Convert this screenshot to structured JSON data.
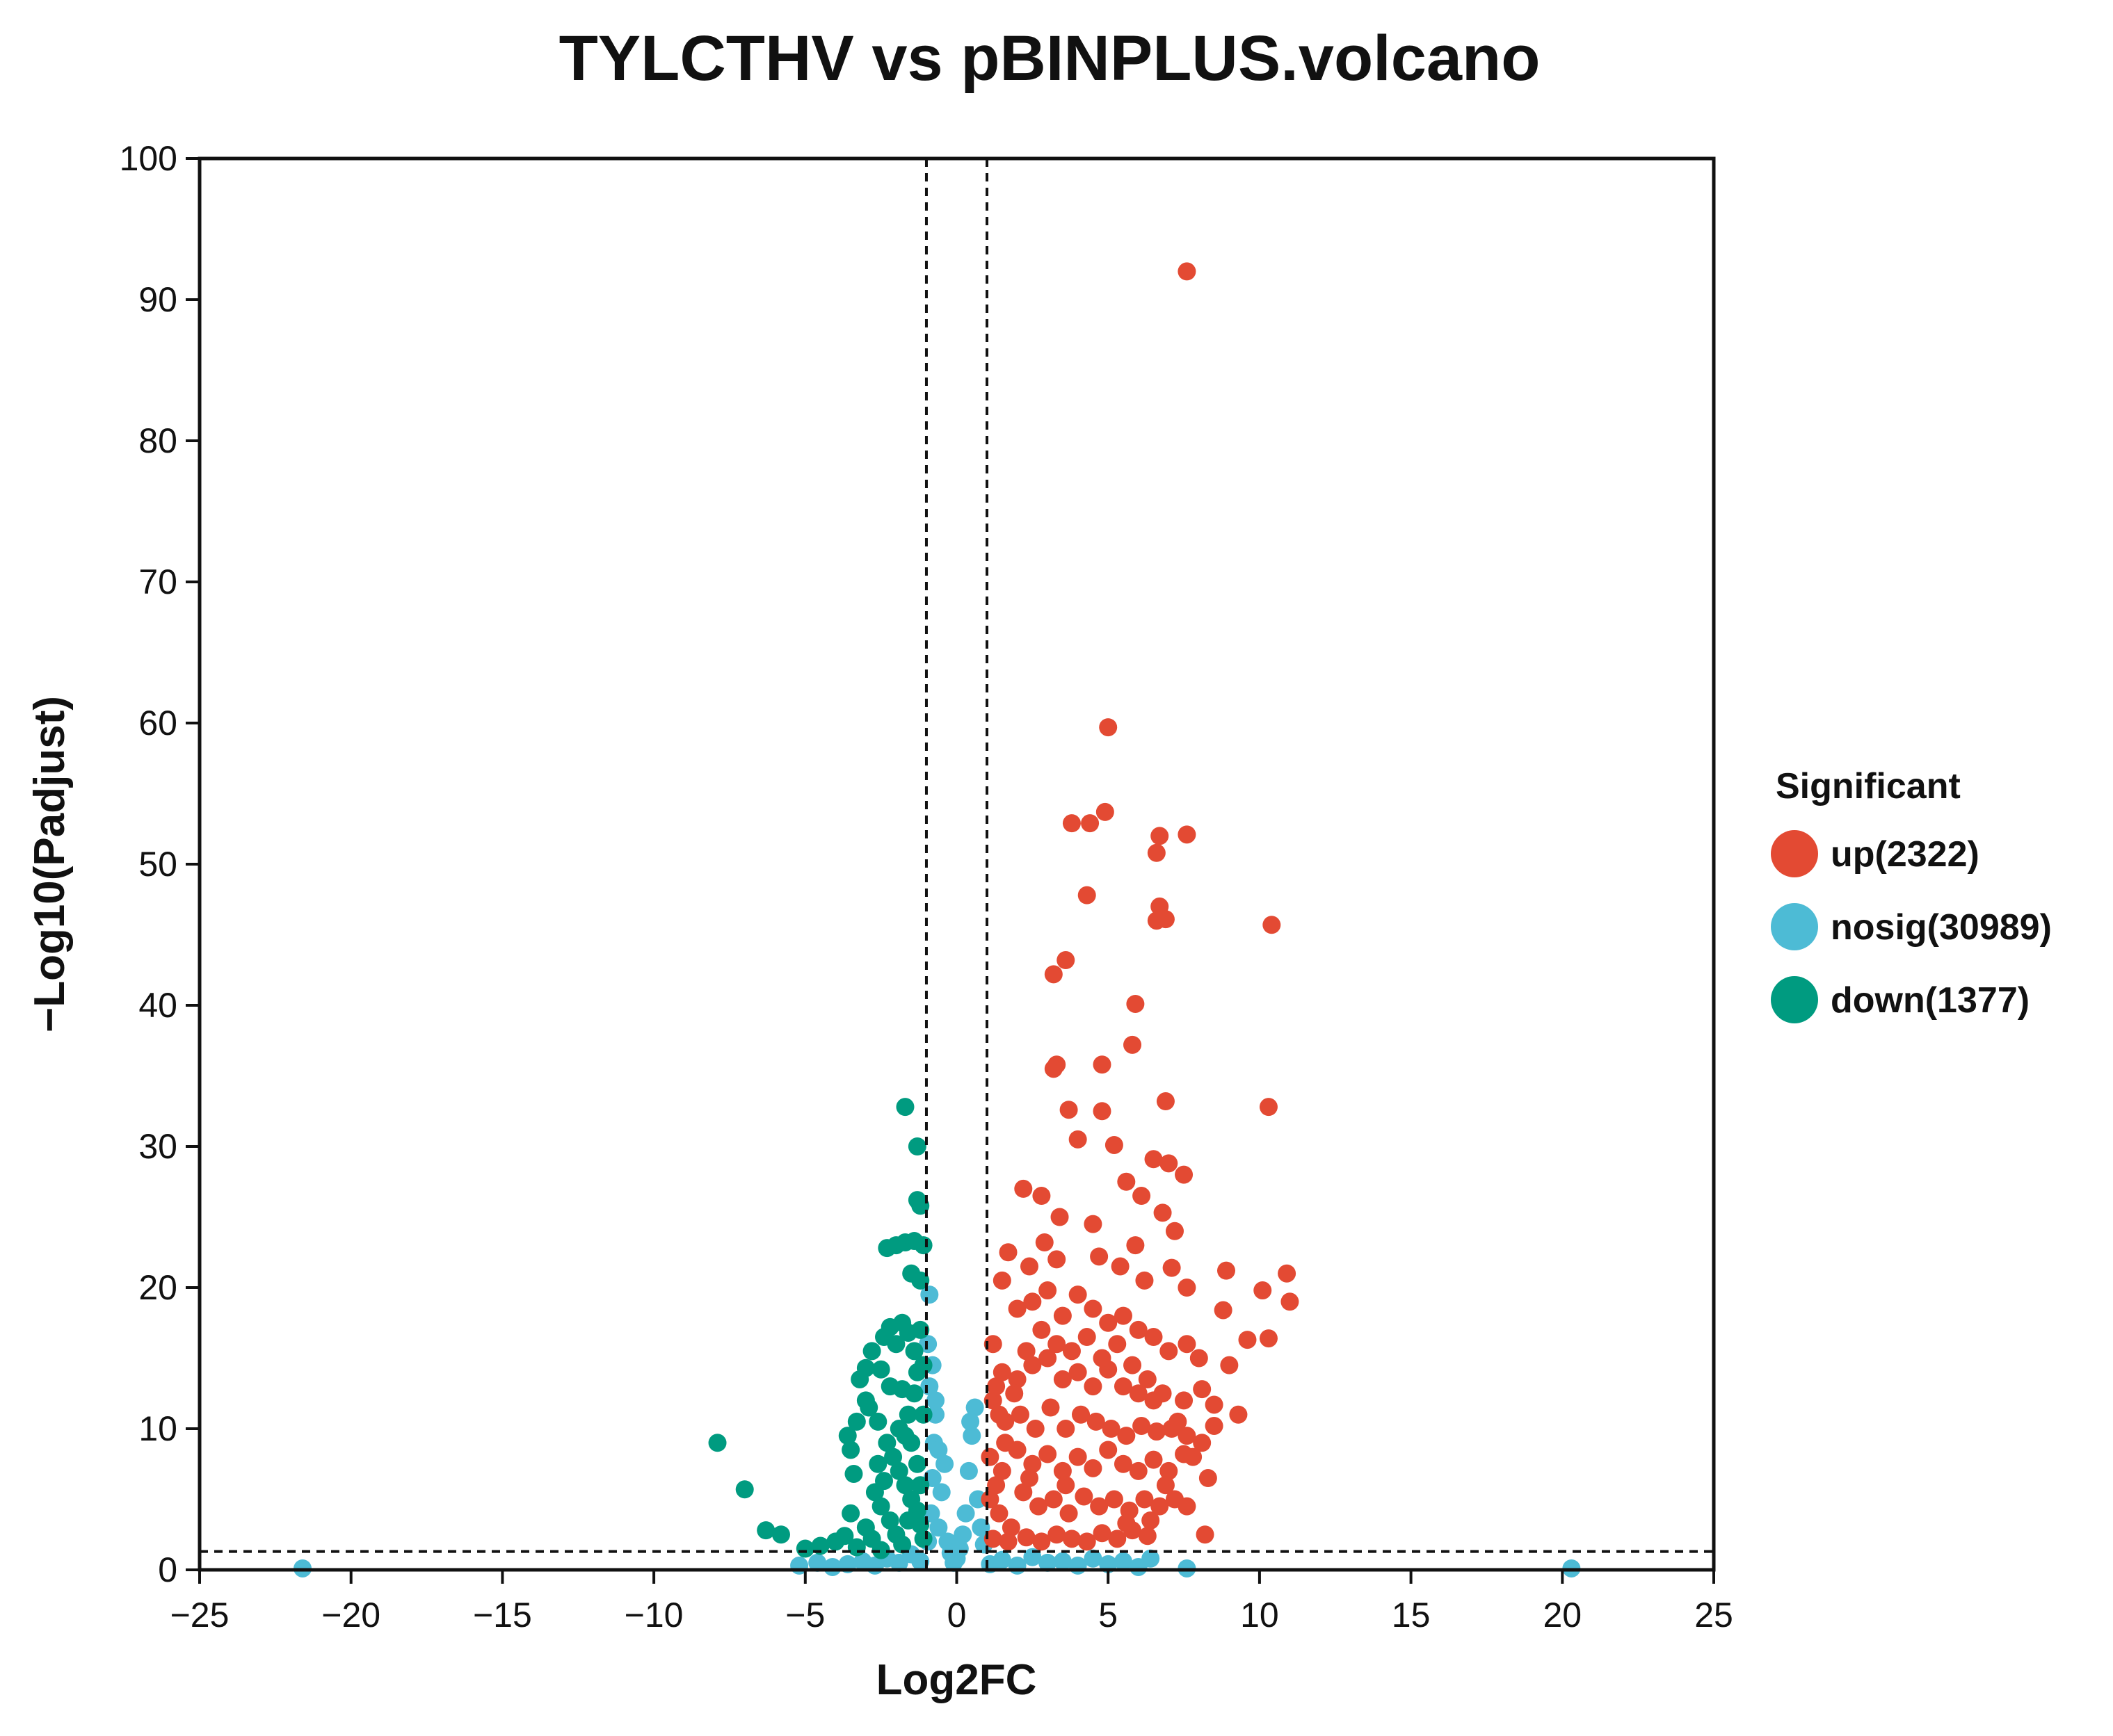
{
  "chart_data": {
    "type": "scatter",
    "title": "TYLCTHV vs pBINPLUS.volcano",
    "xlabel": "Log2FC",
    "ylabel": "−Log10(Padjust)",
    "xlim": [
      -25,
      25
    ],
    "ylim": [
      0,
      100
    ],
    "xticks": [
      -25,
      -20,
      -15,
      -10,
      -5,
      0,
      5,
      10,
      15,
      20,
      25
    ],
    "yticks": [
      0,
      10,
      20,
      30,
      40,
      50,
      60,
      70,
      80,
      90,
      100
    ],
    "grid": false,
    "thresholds": {
      "log2fc": [
        -1,
        1
      ],
      "neg_log10_padjust": 1.3
    },
    "legend": {
      "title": "Significant",
      "position": "right",
      "entries": [
        {
          "key": "up",
          "label": "up(2322)",
          "color": "#E34A33"
        },
        {
          "key": "nosig",
          "label": "nosig(30989)",
          "color": "#4DBBD5"
        },
        {
          "key": "down",
          "label": "down(1377)",
          "color": "#009B80"
        }
      ]
    },
    "series": [
      {
        "name": "nosig",
        "color": "#4DBBD5",
        "points": [
          [
            -21.6,
            0.1
          ],
          [
            20.3,
            0.1
          ],
          [
            7.6,
            0.1
          ],
          [
            6.4,
            0.8
          ],
          [
            -5.2,
            0.3
          ],
          [
            -4.6,
            0.5
          ],
          [
            -4.1,
            0.2
          ],
          [
            -3.6,
            0.4
          ],
          [
            -3.1,
            0.6
          ],
          [
            -2.7,
            0.3
          ],
          [
            -2.3,
            0.8
          ],
          [
            -1.9,
            0.5
          ],
          [
            -1.5,
            1.1
          ],
          [
            -1.2,
            0.6
          ],
          [
            -0.95,
            2.0
          ],
          [
            -0.85,
            4.0
          ],
          [
            -0.8,
            6.5
          ],
          [
            -0.75,
            9.0
          ],
          [
            -0.7,
            11.0
          ],
          [
            -0.9,
            13.0
          ],
          [
            -0.95,
            16.0
          ],
          [
            -0.9,
            19.5
          ],
          [
            -0.6,
            3.0
          ],
          [
            -0.5,
            5.5
          ],
          [
            -0.4,
            7.5
          ],
          [
            -0.3,
            2.0
          ],
          [
            -0.2,
            1.2
          ],
          [
            -0.1,
            0.5
          ],
          [
            0.0,
            0.8
          ],
          [
            0.1,
            1.5
          ],
          [
            0.2,
            2.5
          ],
          [
            0.3,
            4.0
          ],
          [
            0.4,
            7.0
          ],
          [
            0.5,
            9.5
          ],
          [
            0.6,
            11.5
          ],
          [
            0.7,
            5.0
          ],
          [
            0.8,
            3.0
          ],
          [
            0.9,
            1.8
          ],
          [
            1.1,
            0.4
          ],
          [
            1.5,
            0.7
          ],
          [
            2.0,
            0.3
          ],
          [
            2.5,
            0.9
          ],
          [
            3.0,
            0.5
          ],
          [
            3.5,
            0.6
          ],
          [
            4.0,
            0.3
          ],
          [
            4.5,
            0.8
          ],
          [
            5.0,
            0.4
          ],
          [
            5.5,
            0.6
          ],
          [
            6.0,
            0.2
          ],
          [
            -0.8,
            14.5
          ],
          [
            -0.7,
            12.0
          ],
          [
            -0.6,
            8.5
          ],
          [
            0.45,
            10.5
          ]
        ]
      },
      {
        "name": "down",
        "color": "#009B80",
        "points": [
          [
            -1.7,
            32.8
          ],
          [
            -1.3,
            30.0
          ],
          [
            -1.3,
            26.2
          ],
          [
            -1.2,
            25.8
          ],
          [
            -1.7,
            23.2
          ],
          [
            -1.4,
            23.3
          ],
          [
            -2.0,
            23.0
          ],
          [
            -2.3,
            22.8
          ],
          [
            -1.1,
            23.0
          ],
          [
            -1.5,
            21.0
          ],
          [
            -1.2,
            20.5
          ],
          [
            -7.9,
            9.0
          ],
          [
            -7.0,
            5.7
          ],
          [
            -6.3,
            2.8
          ],
          [
            -5.8,
            2.5
          ],
          [
            -5.0,
            1.5
          ],
          [
            -4.5,
            1.7
          ],
          [
            -4.0,
            2.0
          ],
          [
            -3.7,
            2.4
          ],
          [
            -3.5,
            4.0
          ],
          [
            -3.4,
            6.8
          ],
          [
            -3.5,
            8.5
          ],
          [
            -3.6,
            9.5
          ],
          [
            -3.3,
            10.5
          ],
          [
            -3.0,
            12.0
          ],
          [
            -3.2,
            13.5
          ],
          [
            -3.0,
            14.3
          ],
          [
            -2.5,
            14.2
          ],
          [
            -2.8,
            15.5
          ],
          [
            -2.4,
            16.5
          ],
          [
            -2.2,
            17.2
          ],
          [
            -2.0,
            16.0
          ],
          [
            -1.8,
            17.5
          ],
          [
            -1.6,
            16.8
          ],
          [
            -1.4,
            15.5
          ],
          [
            -1.2,
            17.0
          ],
          [
            -2.9,
            11.5
          ],
          [
            -2.6,
            10.5
          ],
          [
            -2.3,
            9.0
          ],
          [
            -2.1,
            8.0
          ],
          [
            -1.9,
            7.0
          ],
          [
            -1.7,
            6.0
          ],
          [
            -1.5,
            5.0
          ],
          [
            -1.3,
            4.2
          ],
          [
            -1.2,
            3.2
          ],
          [
            -1.1,
            2.2
          ],
          [
            -2.7,
            5.5
          ],
          [
            -2.5,
            4.5
          ],
          [
            -2.2,
            3.5
          ],
          [
            -2.0,
            2.5
          ],
          [
            -1.8,
            1.8
          ],
          [
            -3.0,
            3.0
          ],
          [
            -2.8,
            2.2
          ],
          [
            -1.4,
            12.5
          ],
          [
            -1.6,
            11.0
          ],
          [
            -1.8,
            12.8
          ],
          [
            -2.2,
            13.0
          ],
          [
            -1.5,
            9.0
          ],
          [
            -1.3,
            7.5
          ],
          [
            -1.1,
            11.0
          ],
          [
            -1.1,
            14.5
          ],
          [
            -1.3,
            14.0
          ],
          [
            -2.6,
            7.5
          ],
          [
            -1.7,
            9.5
          ],
          [
            -1.9,
            10.0
          ],
          [
            -2.4,
            6.3
          ],
          [
            -3.3,
            1.6
          ],
          [
            -2.5,
            1.4
          ],
          [
            -1.6,
            3.5
          ],
          [
            -1.2,
            6.0
          ]
        ]
      },
      {
        "name": "up",
        "color": "#E34A33",
        "points": [
          [
            7.6,
            92.0
          ],
          [
            5.0,
            59.7
          ],
          [
            4.9,
            53.7
          ],
          [
            3.8,
            52.9
          ],
          [
            4.4,
            52.9
          ],
          [
            6.7,
            52.0
          ],
          [
            7.6,
            52.1
          ],
          [
            6.6,
            50.8
          ],
          [
            4.3,
            47.8
          ],
          [
            6.7,
            47.0
          ],
          [
            6.6,
            46.0
          ],
          [
            6.9,
            46.1
          ],
          [
            10.4,
            45.7
          ],
          [
            3.6,
            43.2
          ],
          [
            3.2,
            42.2
          ],
          [
            5.9,
            40.1
          ],
          [
            5.8,
            37.2
          ],
          [
            3.3,
            35.8
          ],
          [
            3.2,
            35.5
          ],
          [
            4.8,
            35.8
          ],
          [
            6.9,
            33.2
          ],
          [
            10.3,
            32.8
          ],
          [
            3.7,
            32.6
          ],
          [
            4.8,
            32.5
          ],
          [
            4.0,
            30.5
          ],
          [
            5.2,
            30.1
          ],
          [
            6.5,
            29.1
          ],
          [
            7.0,
            28.8
          ],
          [
            7.5,
            28.0
          ],
          [
            5.6,
            27.5
          ],
          [
            6.1,
            26.5
          ],
          [
            2.2,
            27.0
          ],
          [
            2.8,
            26.5
          ],
          [
            3.4,
            25.0
          ],
          [
            4.5,
            24.5
          ],
          [
            6.8,
            25.3
          ],
          [
            7.2,
            24.0
          ],
          [
            5.9,
            23.0
          ],
          [
            2.9,
            23.2
          ],
          [
            1.7,
            22.5
          ],
          [
            2.4,
            21.5
          ],
          [
            3.3,
            22.0
          ],
          [
            4.7,
            22.2
          ],
          [
            5.4,
            21.5
          ],
          [
            7.1,
            21.4
          ],
          [
            8.9,
            21.2
          ],
          [
            10.9,
            21.0
          ],
          [
            1.5,
            20.5
          ],
          [
            6.2,
            20.5
          ],
          [
            7.6,
            20.0
          ],
          [
            10.1,
            19.8
          ],
          [
            11.0,
            19.0
          ],
          [
            8.8,
            18.4
          ],
          [
            9.6,
            16.3
          ],
          [
            10.3,
            16.4
          ],
          [
            7.6,
            16.0
          ],
          [
            2.0,
            18.5
          ],
          [
            2.5,
            19.0
          ],
          [
            3.0,
            19.8
          ],
          [
            3.5,
            18.0
          ],
          [
            4.0,
            19.5
          ],
          [
            4.5,
            18.5
          ],
          [
            5.0,
            17.5
          ],
          [
            5.5,
            18.0
          ],
          [
            6.0,
            17.0
          ],
          [
            6.5,
            16.5
          ],
          [
            7.0,
            15.5
          ],
          [
            8.0,
            15.0
          ],
          [
            9.0,
            14.5
          ],
          [
            1.2,
            16.0
          ],
          [
            1.5,
            14.0
          ],
          [
            2.0,
            13.5
          ],
          [
            2.5,
            14.5
          ],
          [
            3.0,
            15.0
          ],
          [
            3.5,
            13.5
          ],
          [
            4.0,
            14.0
          ],
          [
            4.5,
            13.0
          ],
          [
            5.0,
            14.2
          ],
          [
            5.5,
            13.0
          ],
          [
            6.0,
            12.5
          ],
          [
            6.5,
            12.0
          ],
          [
            7.5,
            12.0
          ],
          [
            8.1,
            12.8
          ],
          [
            8.5,
            11.7
          ],
          [
            9.3,
            11.0
          ],
          [
            1.2,
            12.0
          ],
          [
            1.6,
            10.5
          ],
          [
            2.1,
            11.0
          ],
          [
            2.6,
            10.0
          ],
          [
            3.1,
            11.5
          ],
          [
            3.6,
            10.0
          ],
          [
            4.1,
            11.0
          ],
          [
            4.6,
            10.5
          ],
          [
            5.1,
            10.0
          ],
          [
            5.6,
            9.5
          ],
          [
            6.1,
            10.2
          ],
          [
            6.6,
            9.8
          ],
          [
            7.1,
            10.0
          ],
          [
            7.6,
            9.5
          ],
          [
            8.1,
            9.0
          ],
          [
            8.5,
            10.2
          ],
          [
            1.1,
            8.0
          ],
          [
            1.5,
            7.0
          ],
          [
            2.0,
            8.5
          ],
          [
            2.5,
            7.5
          ],
          [
            3.0,
            8.2
          ],
          [
            3.5,
            7.0
          ],
          [
            4.0,
            8.0
          ],
          [
            4.5,
            7.2
          ],
          [
            5.0,
            8.5
          ],
          [
            5.5,
            7.5
          ],
          [
            6.0,
            7.0
          ],
          [
            6.5,
            7.8
          ],
          [
            7.0,
            7.0
          ],
          [
            7.5,
            8.2
          ],
          [
            1.1,
            5.0
          ],
          [
            1.4,
            4.0
          ],
          [
            1.8,
            3.0
          ],
          [
            2.2,
            5.5
          ],
          [
            2.7,
            4.5
          ],
          [
            3.2,
            5.0
          ],
          [
            3.7,
            4.0
          ],
          [
            4.2,
            5.2
          ],
          [
            4.7,
            4.5
          ],
          [
            5.2,
            5.0
          ],
          [
            5.7,
            4.2
          ],
          [
            6.2,
            5.0
          ],
          [
            6.7,
            4.5
          ],
          [
            7.2,
            5.0
          ],
          [
            7.6,
            4.5
          ],
          [
            1.2,
            2.2
          ],
          [
            1.7,
            2.0
          ],
          [
            2.3,
            2.3
          ],
          [
            2.8,
            2.0
          ],
          [
            3.3,
            2.5
          ],
          [
            3.8,
            2.2
          ],
          [
            4.3,
            2.0
          ],
          [
            4.8,
            2.6
          ],
          [
            5.3,
            2.2
          ],
          [
            5.8,
            2.8
          ],
          [
            6.3,
            2.4
          ],
          [
            8.2,
            2.5
          ],
          [
            1.3,
            6.0
          ],
          [
            1.6,
            9.0
          ],
          [
            1.9,
            12.5
          ],
          [
            2.3,
            15.5
          ],
          [
            2.8,
            17.0
          ],
          [
            3.3,
            16.0
          ],
          [
            3.8,
            15.5
          ],
          [
            4.3,
            16.5
          ],
          [
            4.8,
            15.0
          ],
          [
            5.3,
            16.0
          ],
          [
            5.8,
            14.5
          ],
          [
            6.3,
            13.5
          ],
          [
            6.8,
            12.5
          ],
          [
            7.3,
            10.5
          ],
          [
            7.8,
            8.0
          ],
          [
            8.3,
            6.5
          ],
          [
            6.9,
            6.0
          ],
          [
            6.4,
            3.5
          ],
          [
            5.6,
            3.3
          ],
          [
            3.6,
            6.0
          ],
          [
            2.4,
            6.5
          ],
          [
            1.4,
            11.0
          ],
          [
            1.3,
            13.0
          ]
        ]
      }
    ]
  }
}
